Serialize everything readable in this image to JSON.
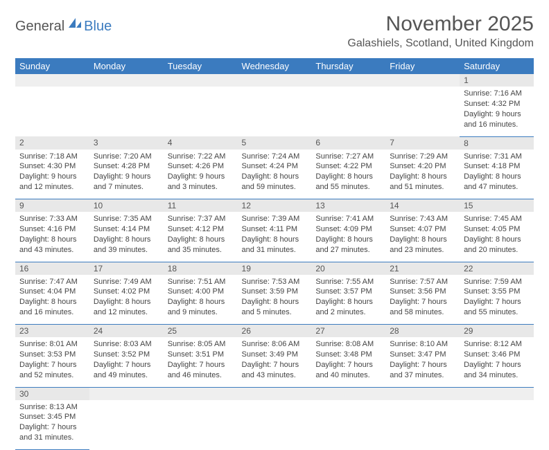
{
  "logo": {
    "part1": "General",
    "part2": "Blue"
  },
  "title": "November 2025",
  "location": "Galashiels, Scotland, United Kingdom",
  "colors": {
    "header_bg": "#3b7bbf",
    "header_fg": "#ffffff",
    "daynum_bg": "#e8e8e8",
    "border": "#3b7bbf",
    "text": "#444444",
    "title": "#555555"
  },
  "day_headers": [
    "Sunday",
    "Monday",
    "Tuesday",
    "Wednesday",
    "Thursday",
    "Friday",
    "Saturday"
  ],
  "weeks": [
    [
      null,
      null,
      null,
      null,
      null,
      null,
      {
        "n": "1",
        "sr": "Sunrise: 7:16 AM",
        "ss": "Sunset: 4:32 PM",
        "d1": "Daylight: 9 hours",
        "d2": "and 16 minutes."
      }
    ],
    [
      {
        "n": "2",
        "sr": "Sunrise: 7:18 AM",
        "ss": "Sunset: 4:30 PM",
        "d1": "Daylight: 9 hours",
        "d2": "and 12 minutes."
      },
      {
        "n": "3",
        "sr": "Sunrise: 7:20 AM",
        "ss": "Sunset: 4:28 PM",
        "d1": "Daylight: 9 hours",
        "d2": "and 7 minutes."
      },
      {
        "n": "4",
        "sr": "Sunrise: 7:22 AM",
        "ss": "Sunset: 4:26 PM",
        "d1": "Daylight: 9 hours",
        "d2": "and 3 minutes."
      },
      {
        "n": "5",
        "sr": "Sunrise: 7:24 AM",
        "ss": "Sunset: 4:24 PM",
        "d1": "Daylight: 8 hours",
        "d2": "and 59 minutes."
      },
      {
        "n": "6",
        "sr": "Sunrise: 7:27 AM",
        "ss": "Sunset: 4:22 PM",
        "d1": "Daylight: 8 hours",
        "d2": "and 55 minutes."
      },
      {
        "n": "7",
        "sr": "Sunrise: 7:29 AM",
        "ss": "Sunset: 4:20 PM",
        "d1": "Daylight: 8 hours",
        "d2": "and 51 minutes."
      },
      {
        "n": "8",
        "sr": "Sunrise: 7:31 AM",
        "ss": "Sunset: 4:18 PM",
        "d1": "Daylight: 8 hours",
        "d2": "and 47 minutes."
      }
    ],
    [
      {
        "n": "9",
        "sr": "Sunrise: 7:33 AM",
        "ss": "Sunset: 4:16 PM",
        "d1": "Daylight: 8 hours",
        "d2": "and 43 minutes."
      },
      {
        "n": "10",
        "sr": "Sunrise: 7:35 AM",
        "ss": "Sunset: 4:14 PM",
        "d1": "Daylight: 8 hours",
        "d2": "and 39 minutes."
      },
      {
        "n": "11",
        "sr": "Sunrise: 7:37 AM",
        "ss": "Sunset: 4:12 PM",
        "d1": "Daylight: 8 hours",
        "d2": "and 35 minutes."
      },
      {
        "n": "12",
        "sr": "Sunrise: 7:39 AM",
        "ss": "Sunset: 4:11 PM",
        "d1": "Daylight: 8 hours",
        "d2": "and 31 minutes."
      },
      {
        "n": "13",
        "sr": "Sunrise: 7:41 AM",
        "ss": "Sunset: 4:09 PM",
        "d1": "Daylight: 8 hours",
        "d2": "and 27 minutes."
      },
      {
        "n": "14",
        "sr": "Sunrise: 7:43 AM",
        "ss": "Sunset: 4:07 PM",
        "d1": "Daylight: 8 hours",
        "d2": "and 23 minutes."
      },
      {
        "n": "15",
        "sr": "Sunrise: 7:45 AM",
        "ss": "Sunset: 4:05 PM",
        "d1": "Daylight: 8 hours",
        "d2": "and 20 minutes."
      }
    ],
    [
      {
        "n": "16",
        "sr": "Sunrise: 7:47 AM",
        "ss": "Sunset: 4:04 PM",
        "d1": "Daylight: 8 hours",
        "d2": "and 16 minutes."
      },
      {
        "n": "17",
        "sr": "Sunrise: 7:49 AM",
        "ss": "Sunset: 4:02 PM",
        "d1": "Daylight: 8 hours",
        "d2": "and 12 minutes."
      },
      {
        "n": "18",
        "sr": "Sunrise: 7:51 AM",
        "ss": "Sunset: 4:00 PM",
        "d1": "Daylight: 8 hours",
        "d2": "and 9 minutes."
      },
      {
        "n": "19",
        "sr": "Sunrise: 7:53 AM",
        "ss": "Sunset: 3:59 PM",
        "d1": "Daylight: 8 hours",
        "d2": "and 5 minutes."
      },
      {
        "n": "20",
        "sr": "Sunrise: 7:55 AM",
        "ss": "Sunset: 3:57 PM",
        "d1": "Daylight: 8 hours",
        "d2": "and 2 minutes."
      },
      {
        "n": "21",
        "sr": "Sunrise: 7:57 AM",
        "ss": "Sunset: 3:56 PM",
        "d1": "Daylight: 7 hours",
        "d2": "and 58 minutes."
      },
      {
        "n": "22",
        "sr": "Sunrise: 7:59 AM",
        "ss": "Sunset: 3:55 PM",
        "d1": "Daylight: 7 hours",
        "d2": "and 55 minutes."
      }
    ],
    [
      {
        "n": "23",
        "sr": "Sunrise: 8:01 AM",
        "ss": "Sunset: 3:53 PM",
        "d1": "Daylight: 7 hours",
        "d2": "and 52 minutes."
      },
      {
        "n": "24",
        "sr": "Sunrise: 8:03 AM",
        "ss": "Sunset: 3:52 PM",
        "d1": "Daylight: 7 hours",
        "d2": "and 49 minutes."
      },
      {
        "n": "25",
        "sr": "Sunrise: 8:05 AM",
        "ss": "Sunset: 3:51 PM",
        "d1": "Daylight: 7 hours",
        "d2": "and 46 minutes."
      },
      {
        "n": "26",
        "sr": "Sunrise: 8:06 AM",
        "ss": "Sunset: 3:49 PM",
        "d1": "Daylight: 7 hours",
        "d2": "and 43 minutes."
      },
      {
        "n": "27",
        "sr": "Sunrise: 8:08 AM",
        "ss": "Sunset: 3:48 PM",
        "d1": "Daylight: 7 hours",
        "d2": "and 40 minutes."
      },
      {
        "n": "28",
        "sr": "Sunrise: 8:10 AM",
        "ss": "Sunset: 3:47 PM",
        "d1": "Daylight: 7 hours",
        "d2": "and 37 minutes."
      },
      {
        "n": "29",
        "sr": "Sunrise: 8:12 AM",
        "ss": "Sunset: 3:46 PM",
        "d1": "Daylight: 7 hours",
        "d2": "and 34 minutes."
      }
    ],
    [
      {
        "n": "30",
        "sr": "Sunrise: 8:13 AM",
        "ss": "Sunset: 3:45 PM",
        "d1": "Daylight: 7 hours",
        "d2": "and 31 minutes."
      },
      null,
      null,
      null,
      null,
      null,
      null
    ]
  ]
}
